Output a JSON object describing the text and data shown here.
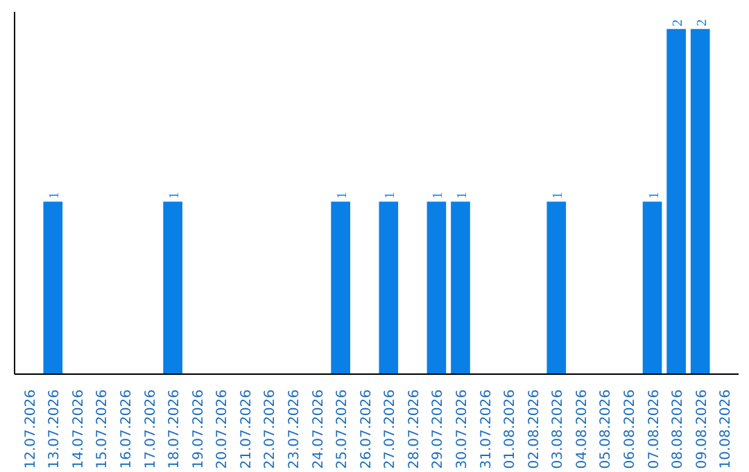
{
  "chart_data": {
    "type": "bar",
    "categories": [
      "12.07.2026",
      "13.07.2026",
      "14.07.2026",
      "15.07.2026",
      "16.07.2026",
      "17.07.2026",
      "18.07.2026",
      "19.07.2026",
      "20.07.2026",
      "21.07.2026",
      "22.07.2026",
      "23.07.2026",
      "24.07.2026",
      "25.07.2026",
      "26.07.2026",
      "27.07.2026",
      "28.07.2026",
      "29.07.2026",
      "30.07.2026",
      "31.07.2026",
      "01.08.2026",
      "02.08.2026",
      "03.08.2026",
      "04.08.2026",
      "05.08.2026",
      "06.08.2026",
      "07.08.2026",
      "08.08.2026",
      "09.08.2026",
      "10.08.2026"
    ],
    "values": [
      0,
      1,
      0,
      0,
      0,
      0,
      1,
      0,
      0,
      0,
      0,
      0,
      0,
      1,
      0,
      1,
      0,
      1,
      1,
      0,
      0,
      0,
      1,
      0,
      0,
      0,
      1,
      2,
      2,
      0
    ],
    "value_labels": [
      null,
      "1",
      null,
      null,
      null,
      null,
      "1",
      null,
      null,
      null,
      null,
      null,
      null,
      "1",
      null,
      "1",
      null,
      "1",
      "1",
      null,
      null,
      null,
      "1",
      null,
      null,
      null,
      "1",
      "2",
      "2",
      null
    ],
    "color": "#0a7fe6",
    "ylim": [
      0,
      2.1
    ],
    "tick_labels": "x",
    "grid": false
  }
}
